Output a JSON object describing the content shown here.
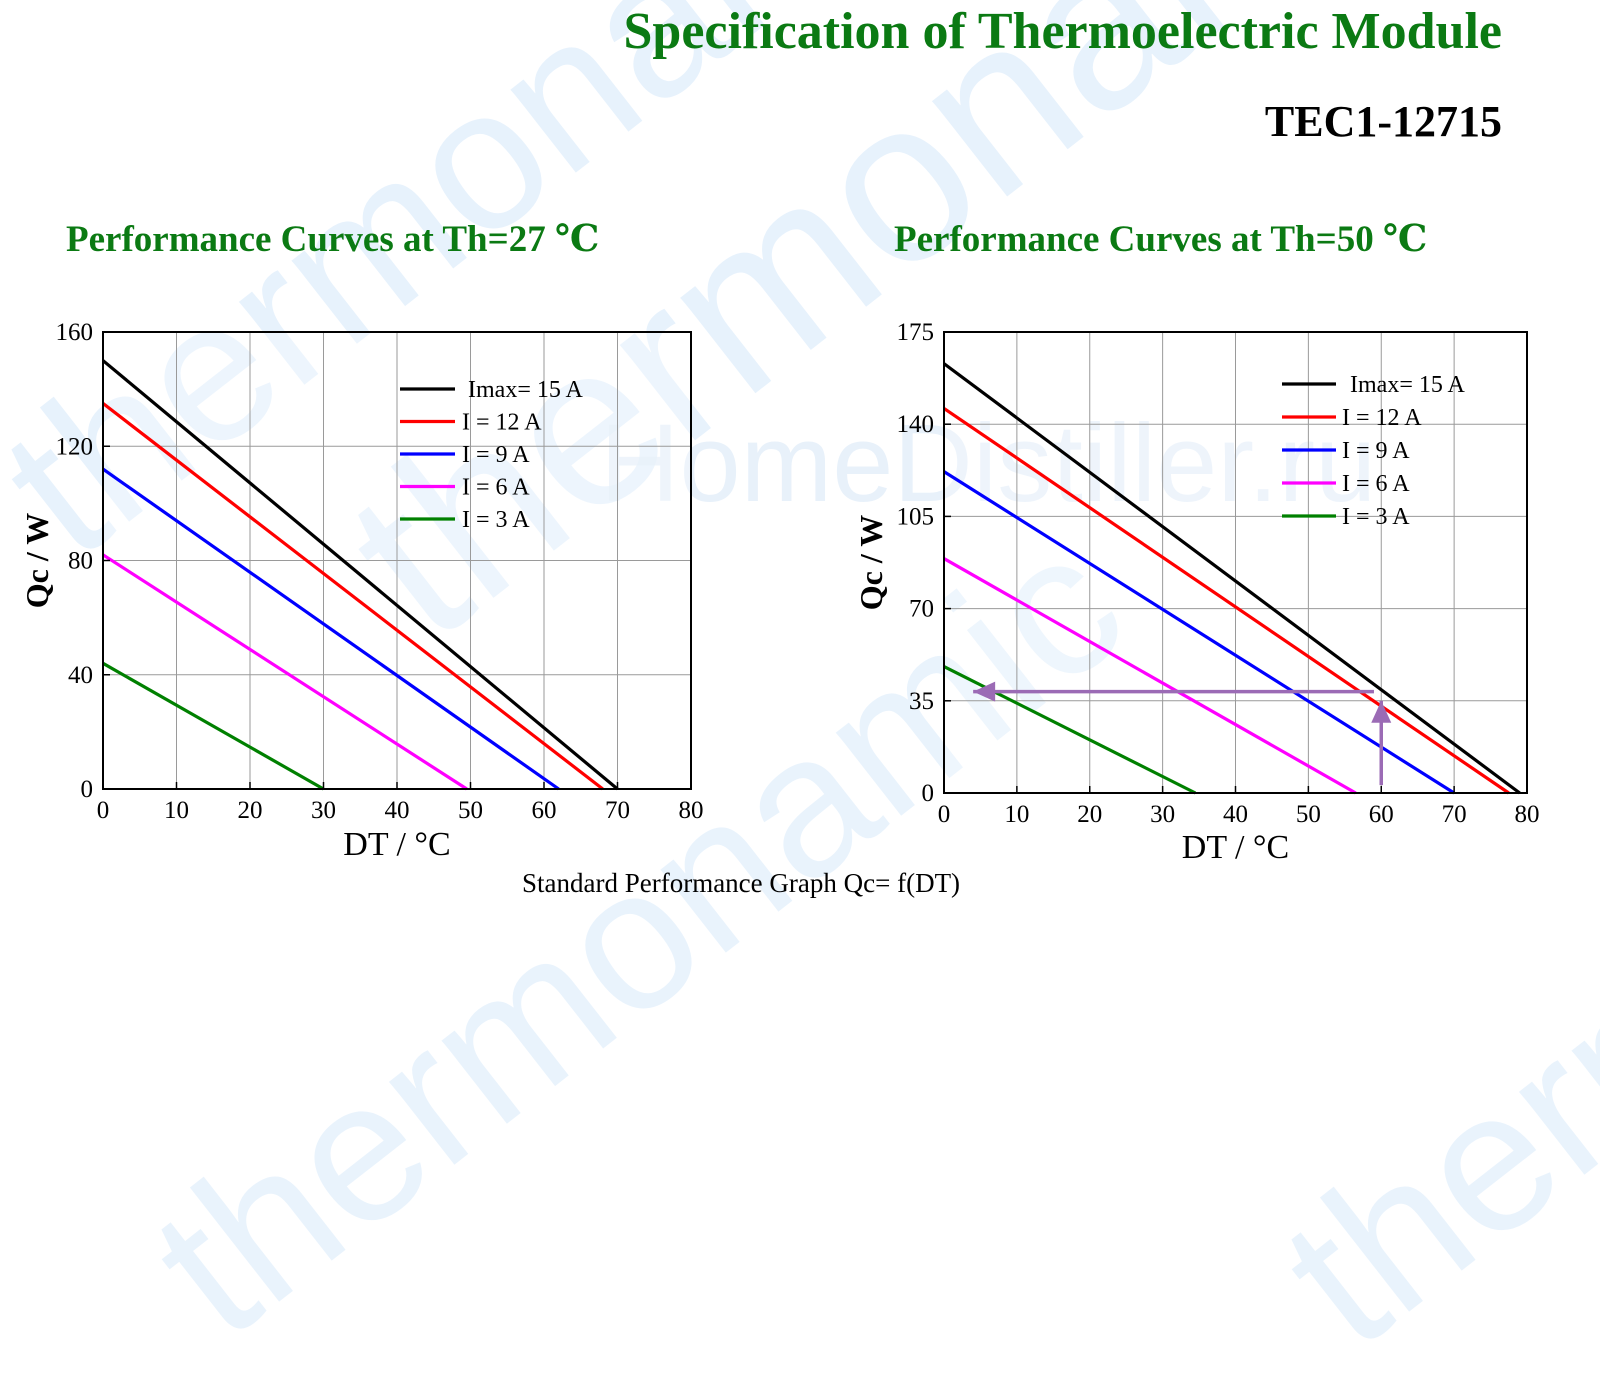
{
  "header": {
    "title": "Specification of Thermoelectric Module",
    "model": "TEC1-12715"
  },
  "caption": "Standard Performance Graph Qc= f(DT)",
  "watermarks": [
    "thermonamic",
    "HomeDistiller.ru"
  ],
  "colors": {
    "title_green": "#0b7a13",
    "arrow_purple": "#9b6bb5"
  },
  "chart_data": [
    {
      "type": "line",
      "title": "Performance Curves at Th=27 ℃",
      "xlabel": "DT / °C",
      "ylabel": "Qc / W",
      "xlim": [
        0,
        80
      ],
      "ylim": [
        0,
        160
      ],
      "xticks": [
        0,
        10,
        20,
        30,
        40,
        50,
        60,
        70,
        80
      ],
      "yticks": [
        0,
        40,
        80,
        120,
        160
      ],
      "grid": true,
      "legend_position": "top-right",
      "series": [
        {
          "name": "Imax= 15 A",
          "color": "#000000",
          "x": [
            0,
            70
          ],
          "y": [
            150,
            0
          ]
        },
        {
          "name": "I = 12 A",
          "color": "#ff0000",
          "x": [
            0,
            68
          ],
          "y": [
            135,
            0
          ]
        },
        {
          "name": "I = 9 A",
          "color": "#0000ff",
          "x": [
            0,
            62
          ],
          "y": [
            112,
            0
          ]
        },
        {
          "name": "I = 6 A",
          "color": "#ff00ff",
          "x": [
            0,
            49.5
          ],
          "y": [
            82,
            0
          ]
        },
        {
          "name": "I = 3 A",
          "color": "#008000",
          "x": [
            0,
            30
          ],
          "y": [
            44,
            0
          ]
        }
      ]
    },
    {
      "type": "line",
      "title": "Performance Curves at Th=50 ℃",
      "xlabel": "DT / °C",
      "ylabel": "Qc / W",
      "xlim": [
        0,
        80
      ],
      "ylim": [
        0,
        175
      ],
      "xticks": [
        0,
        10,
        20,
        30,
        40,
        50,
        60,
        70,
        80
      ],
      "yticks": [
        0,
        35,
        70,
        105,
        140,
        175
      ],
      "grid": true,
      "legend_position": "top-right",
      "series": [
        {
          "name": "Imax= 15 A",
          "color": "#000000",
          "x": [
            0,
            79
          ],
          "y": [
            163,
            0
          ]
        },
        {
          "name": "I = 12 A",
          "color": "#ff0000",
          "x": [
            0,
            77.5
          ],
          "y": [
            146,
            0
          ]
        },
        {
          "name": "I = 9 A",
          "color": "#0000ff",
          "x": [
            0,
            70
          ],
          "y": [
            122,
            0
          ]
        },
        {
          "name": "I = 6 A",
          "color": "#ff00ff",
          "x": [
            0,
            56.5
          ],
          "y": [
            89,
            0
          ]
        },
        {
          "name": "I = 3 A",
          "color": "#008000",
          "x": [
            0,
            34.5
          ],
          "y": [
            48,
            0
          ]
        }
      ],
      "annotations": [
        {
          "type": "arrow",
          "from": [
            60,
            3
          ],
          "to": [
            60,
            35
          ]
        },
        {
          "type": "arrow",
          "from": [
            59,
            38.5
          ],
          "to": [
            4,
            38.5
          ]
        }
      ]
    }
  ]
}
